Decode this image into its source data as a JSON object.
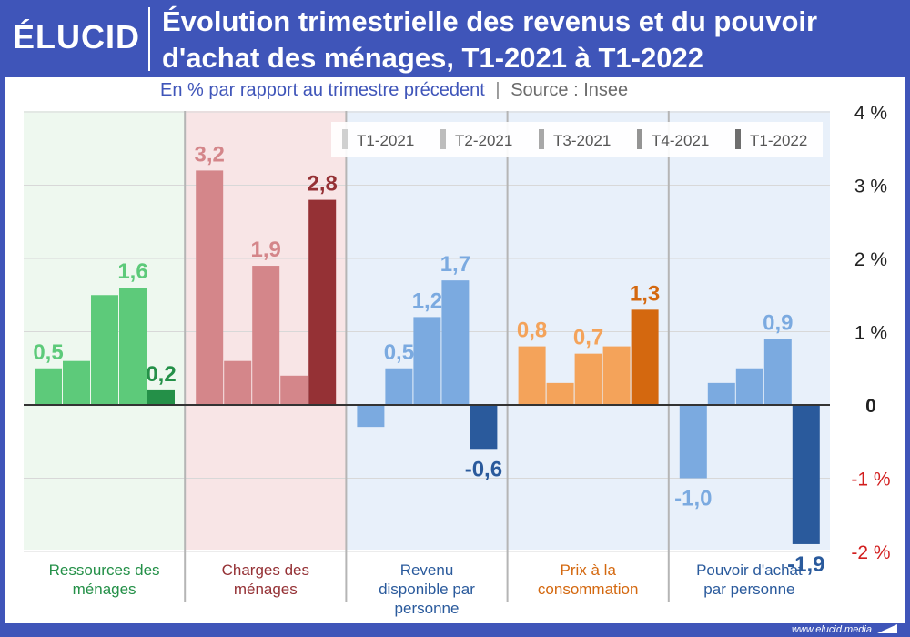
{
  "header": {
    "logo": "ÉLUCID",
    "title": "Évolution trimestrielle des revenus et du pouvoir d'achat des ménages, T1-2021 à T1-2022"
  },
  "subtitle": {
    "text": "En % par rapport au trimestre précedent",
    "separator": "|",
    "source": "Source : Insee"
  },
  "footer": {
    "url": "www.elucid.media"
  },
  "chart_data": {
    "type": "bar",
    "title": "Évolution trimestrielle des revenus et du pouvoir d'achat des ménages, T1-2021 à T1-2022",
    "subtitle": "En % par rapport au trimestre précedent",
    "ylim": [
      -2,
      4
    ],
    "yticks": [
      {
        "value": 4,
        "label": "4 %"
      },
      {
        "value": 3,
        "label": "3 %"
      },
      {
        "value": 2,
        "label": "2 %"
      },
      {
        "value": 1,
        "label": "1 %"
      },
      {
        "value": 0,
        "label": "0"
      },
      {
        "value": -1,
        "label": "-1 %"
      },
      {
        "value": -2,
        "label": "-2 %"
      }
    ],
    "series_names": [
      "T1-2021",
      "T2-2021",
      "T3-2021",
      "T4-2021",
      "T1-2022"
    ],
    "groups": [
      {
        "name": "Ressources des ménages",
        "label_lines": [
          "Ressources des",
          "ménages"
        ],
        "values": [
          0.5,
          0.6,
          1.5,
          1.6,
          0.2
        ],
        "labels": [
          "0,5",
          "",
          "",
          "1,6",
          "0,2"
        ],
        "color_light": "#5dca7a",
        "color_dark": "#249048",
        "label_color_light": "#5dca7a",
        "background": "#eef8ef"
      },
      {
        "name": "Charges des ménages",
        "label_lines": [
          "Charges des",
          "ménages"
        ],
        "values": [
          3.2,
          0.6,
          1.9,
          0.4,
          2.8
        ],
        "labels": [
          "3,2",
          "",
          "1,9",
          "",
          "2,8"
        ],
        "color_light": "#d4868a",
        "color_dark": "#953135",
        "label_color_light": "#d4868a",
        "background": "#f8e5e6"
      },
      {
        "name": "Revenu disponible par personne",
        "label_lines": [
          "Revenu",
          "disponible par",
          "personne"
        ],
        "values": [
          -0.3,
          0.5,
          1.2,
          1.7,
          -0.6
        ],
        "labels": [
          "",
          "0,5",
          "1,2",
          "1,7",
          "-0,6"
        ],
        "color_light": "#7baae0",
        "color_dark": "#2a5a9c",
        "label_color_light": "#7baae0",
        "background": "#e8f0fa"
      },
      {
        "name": "Prix à la consommation",
        "label_lines": [
          "Prix à la",
          "consommation"
        ],
        "values": [
          0.8,
          0.3,
          0.7,
          0.8,
          1.3
        ],
        "labels": [
          "0,8",
          "",
          "0,7",
          "",
          "1,3"
        ],
        "color_light": "#f4a35a",
        "color_dark": "#d4680f",
        "label_color_light": "#f4a35a",
        "background": "#e8f0fa"
      },
      {
        "name": "Pouvoir d'achat par personne",
        "label_lines": [
          "Pouvoir d'achat",
          "par personne"
        ],
        "values": [
          -1.0,
          0.3,
          0.5,
          0.9,
          -1.9
        ],
        "labels": [
          "-1,0",
          "",
          "",
          "0,9",
          "-1,9"
        ],
        "color_light": "#7baae0",
        "color_dark": "#2a5a9c",
        "label_color_light": "#7baae0",
        "background": "#e8f0fa"
      }
    ],
    "legend": {
      "position": "top-right",
      "colors": [
        "#d0d0d0",
        "#bdbdbd",
        "#a8a8a8",
        "#949494",
        "#6e6e6e"
      ]
    },
    "grid": true
  }
}
